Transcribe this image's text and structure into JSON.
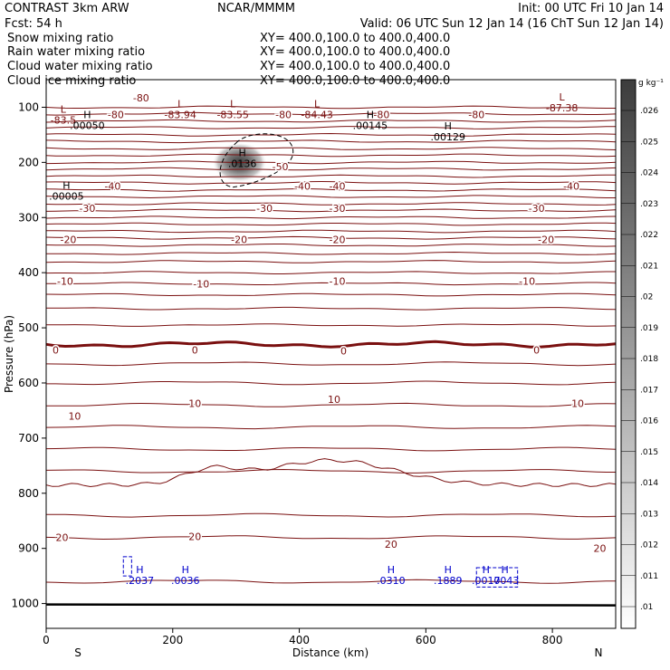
{
  "header": {
    "title": "CONTRAST  3km ARW",
    "center": "NCAR/MMMM",
    "init": "Init: 00 UTC Fri 10 Jan 14",
    "fcst": "Fcst:   54 h",
    "valid": "Valid: 06 UTC Sun 12 Jan 14 (16 ChT Sun 12 Jan 14)",
    "fields": [
      {
        "name": "Snow mixing ratio",
        "xy": "XY= 400.0,100.0 to 400.0,400.0",
        "color": "#000000"
      },
      {
        "name": "Rain water mixing ratio",
        "xy": "XY= 400.0,100.0 to 400.0,400.0",
        "color": "#cc0000"
      },
      {
        "name": "Cloud water mixing ratio",
        "xy": "XY= 400.0,100.0 to 400.0,400.0",
        "color": "#0000cc"
      },
      {
        "name": "Cloud ice mixing ratio",
        "xy": "XY= 400.0,100.0 to 400.0,400.0",
        "color": "#000000"
      }
    ]
  },
  "chart_data": {
    "type": "contour-cross-section",
    "xlabel": "Distance (km)",
    "ylabel": "Pressure (hPa)",
    "xlim": [
      0,
      900
    ],
    "ylim": [
      50,
      1045
    ],
    "x_ticks": [
      0,
      200,
      400,
      600,
      800
    ],
    "y_ticks": [
      100,
      200,
      300,
      400,
      500,
      600,
      700,
      800,
      900,
      1000
    ],
    "end_labels": {
      "left": "S",
      "right": "N"
    },
    "colorbar": {
      "unit": "g kg⁻¹",
      "ticks": [
        ".026",
        ".025",
        ".024",
        ".023",
        ".022",
        ".021",
        ".02",
        ".019",
        ".018",
        ".017",
        ".016",
        ".015",
        ".014",
        ".013",
        ".012",
        ".011",
        ".01"
      ]
    },
    "colors": {
      "isotherm": "#7a1010",
      "ground": "#000000",
      "cloud_water": "#0000cc",
      "ice": "#000000"
    },
    "isotherm_labels": [
      {
        "text": "-80",
        "x": 150,
        "p": 83
      },
      {
        "text": "-80",
        "x": 110,
        "p": 113
      },
      {
        "text": "-80",
        "x": 375,
        "p": 113
      },
      {
        "text": "-80",
        "x": 530,
        "p": 113
      },
      {
        "text": "-80",
        "x": 680,
        "p": 113
      },
      {
        "text": "-50",
        "x": 370,
        "p": 208
      },
      {
        "text": "-40",
        "x": 105,
        "p": 243
      },
      {
        "text": "-40",
        "x": 405,
        "p": 243
      },
      {
        "text": "-40",
        "x": 460,
        "p": 243
      },
      {
        "text": "-40",
        "x": 830,
        "p": 243
      },
      {
        "text": "-30",
        "x": 65,
        "p": 283
      },
      {
        "text": "-30",
        "x": 345,
        "p": 283
      },
      {
        "text": "-30",
        "x": 460,
        "p": 283
      },
      {
        "text": "-30",
        "x": 775,
        "p": 283
      },
      {
        "text": "-20",
        "x": 35,
        "p": 340
      },
      {
        "text": "-20",
        "x": 305,
        "p": 340
      },
      {
        "text": "-20",
        "x": 460,
        "p": 340
      },
      {
        "text": "-20",
        "x": 790,
        "p": 340
      },
      {
        "text": "-10",
        "x": 30,
        "p": 415
      },
      {
        "text": "-10",
        "x": 245,
        "p": 420
      },
      {
        "text": "-10",
        "x": 460,
        "p": 415
      },
      {
        "text": "-10",
        "x": 760,
        "p": 415
      },
      {
        "text": "0",
        "x": 15,
        "p": 540
      },
      {
        "text": "0",
        "x": 235,
        "p": 540
      },
      {
        "text": "0",
        "x": 470,
        "p": 542
      },
      {
        "text": "0",
        "x": 775,
        "p": 540
      },
      {
        "text": "10",
        "x": 45,
        "p": 660
      },
      {
        "text": "10",
        "x": 235,
        "p": 637
      },
      {
        "text": "10",
        "x": 455,
        "p": 630
      },
      {
        "text": "10",
        "x": 840,
        "p": 637
      },
      {
        "text": "20",
        "x": 25,
        "p": 880
      },
      {
        "text": "20",
        "x": 235,
        "p": 878
      },
      {
        "text": "20",
        "x": 545,
        "p": 892
      },
      {
        "text": "20",
        "x": 875,
        "p": 900
      }
    ],
    "extrema": [
      {
        "mark": "L",
        "value": "-83.5",
        "x": 27,
        "p": 110,
        "color": "#7a1010"
      },
      {
        "mark": "L",
        "value": "-83.94",
        "x": 212,
        "p": 100,
        "color": "#7a1010"
      },
      {
        "mark": "L",
        "value": "-83.55",
        "x": 295,
        "p": 100,
        "color": "#7a1010"
      },
      {
        "mark": "L",
        "value": "-84.43",
        "x": 428,
        "p": 100,
        "color": "#7a1010"
      },
      {
        "mark": "L",
        "value": "-87.38",
        "x": 815,
        "p": 88,
        "color": "#7a1010"
      },
      {
        "mark": "H",
        "value": ".00050",
        "x": 65,
        "p": 120,
        "color": "#000000"
      },
      {
        "mark": "H",
        "value": ".00145",
        "x": 512,
        "p": 120,
        "color": "#000000"
      },
      {
        "mark": "H",
        "value": ".00129",
        "x": 635,
        "p": 140,
        "color": "#000000"
      },
      {
        "mark": "H",
        "value": ".0136",
        "x": 310,
        "p": 189,
        "color": "#000000"
      },
      {
        "mark": "H",
        "value": ".00005",
        "x": 32,
        "p": 248,
        "color": "#000000"
      },
      {
        "mark": "H",
        "value": ".2037",
        "x": 148,
        "p": 945,
        "color": "#0000cc"
      },
      {
        "mark": "H",
        "value": ".0036",
        "x": 220,
        "p": 945,
        "color": "#0000cc"
      },
      {
        "mark": "H",
        "value": ".0310",
        "x": 545,
        "p": 945,
        "color": "#0000cc"
      },
      {
        "mark": "H",
        "value": ".1889",
        "x": 635,
        "p": 945,
        "color": "#0000cc"
      },
      {
        "mark": "H",
        "value": ".0017",
        "x": 695,
        "p": 945,
        "color": "#0000cc"
      },
      {
        "mark": "H",
        "value": ".0043",
        "x": 725,
        "p": 945,
        "color": "#0000cc"
      }
    ],
    "snow_max": {
      "value": ".0136",
      "x": 310,
      "p": 200
    }
  }
}
